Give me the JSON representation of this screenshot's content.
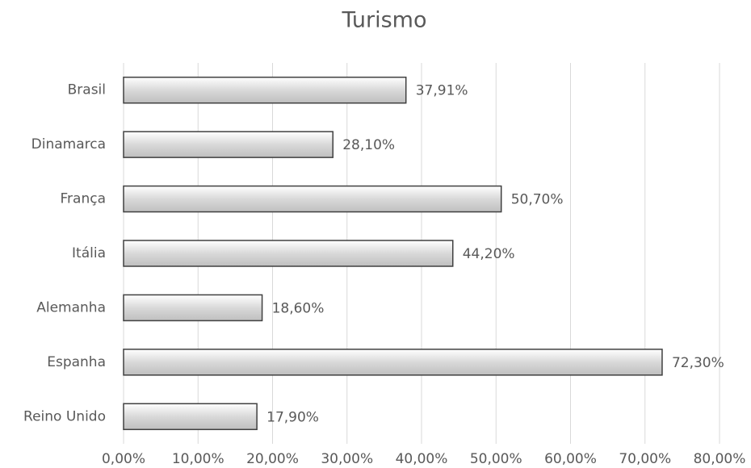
{
  "chart_data": {
    "type": "bar",
    "orientation": "horizontal",
    "title": "Turismo",
    "categories": [
      "Brasil",
      "Dinamarca",
      "França",
      "Itália",
      "Alemanha",
      "Espanha",
      "Reino Unido"
    ],
    "values": [
      37.91,
      28.1,
      50.7,
      44.2,
      18.6,
      72.3,
      17.9
    ],
    "value_labels": [
      "37,91%",
      "28,10%",
      "50,70%",
      "44,20%",
      "18,60%",
      "72,30%",
      "17,90%"
    ],
    "color": "#d9d9d9",
    "xlim": [
      0,
      80
    ],
    "xticks": [
      {
        "value": 0,
        "label": "0,00%"
      },
      {
        "value": 10,
        "label": "10,00%"
      },
      {
        "value": 20,
        "label": "20,00%"
      },
      {
        "value": 30,
        "label": "30,00%"
      },
      {
        "value": 40,
        "label": "40,00%"
      },
      {
        "value": 50,
        "label": "50,00%"
      },
      {
        "value": 60,
        "label": "60,00%"
      },
      {
        "value": 70,
        "label": "70,00%"
      },
      {
        "value": 80,
        "label": "80,00%"
      }
    ],
    "grid": true
  }
}
